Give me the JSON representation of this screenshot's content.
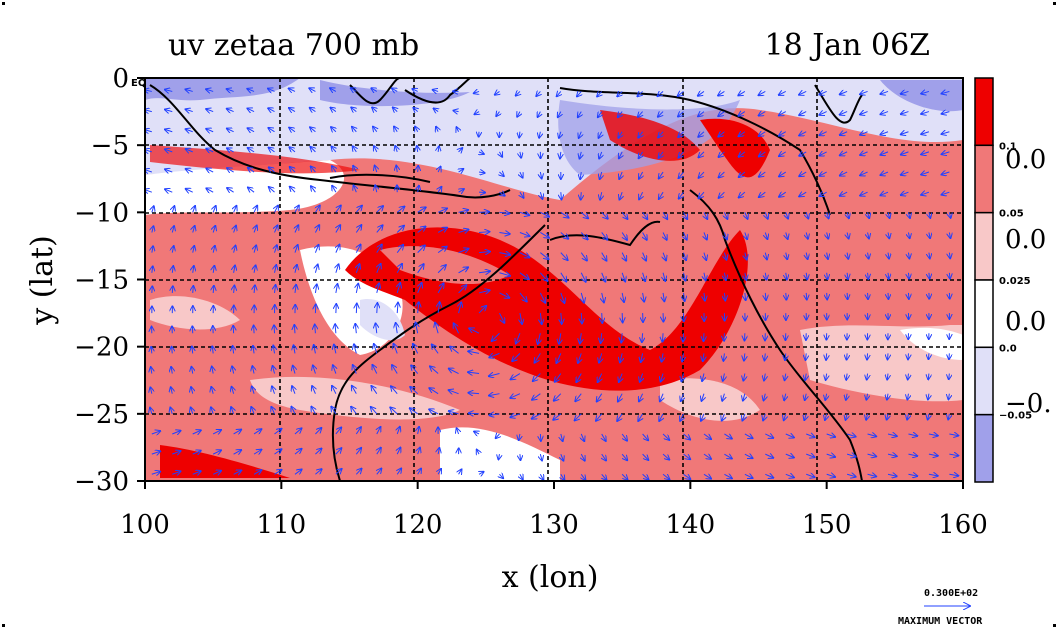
{
  "chart_data": {
    "type": "heatmap",
    "title_left": "uv zetaa 700 mb",
    "title_right": "18 Jan 06Z",
    "xlabel": "x (lon)",
    "ylabel": "y (lat)",
    "xlim": [
      100,
      160
    ],
    "ylim": [
      -30,
      0
    ],
    "x_ticks": [
      100,
      110,
      120,
      130,
      140,
      150,
      160
    ],
    "x_tick_labels": [
      "100",
      "110",
      "120",
      "130",
      "140",
      "150",
      "160"
    ],
    "y_ticks": [
      0,
      -5,
      -10,
      -15,
      -20,
      -25,
      -30
    ],
    "y_tick_labels": [
      "0",
      "−5",
      "−10",
      "−15",
      "−20",
      "−25",
      "−30"
    ],
    "y_top_suffix": "EQ",
    "grid": true,
    "colorbar": {
      "bands": [
        {
          "color": "#ee0000"
        },
        {
          "color": "#f07878"
        },
        {
          "color": "#f8c8c8"
        },
        {
          "color": "#ffffff"
        },
        {
          "color": "#e0e0f8"
        },
        {
          "color": "#a0a0ea"
        }
      ],
      "boundary_labels": [
        "0.1",
        "0.05",
        "0.025",
        "0.0",
        "−0.05"
      ],
      "big_labels": [
        "0.0",
        "0.0",
        "0.0",
        "−0."
      ]
    },
    "vector_legend": {
      "value": "0.300E+02",
      "label": "MAXIMUM VECTOR"
    }
  }
}
